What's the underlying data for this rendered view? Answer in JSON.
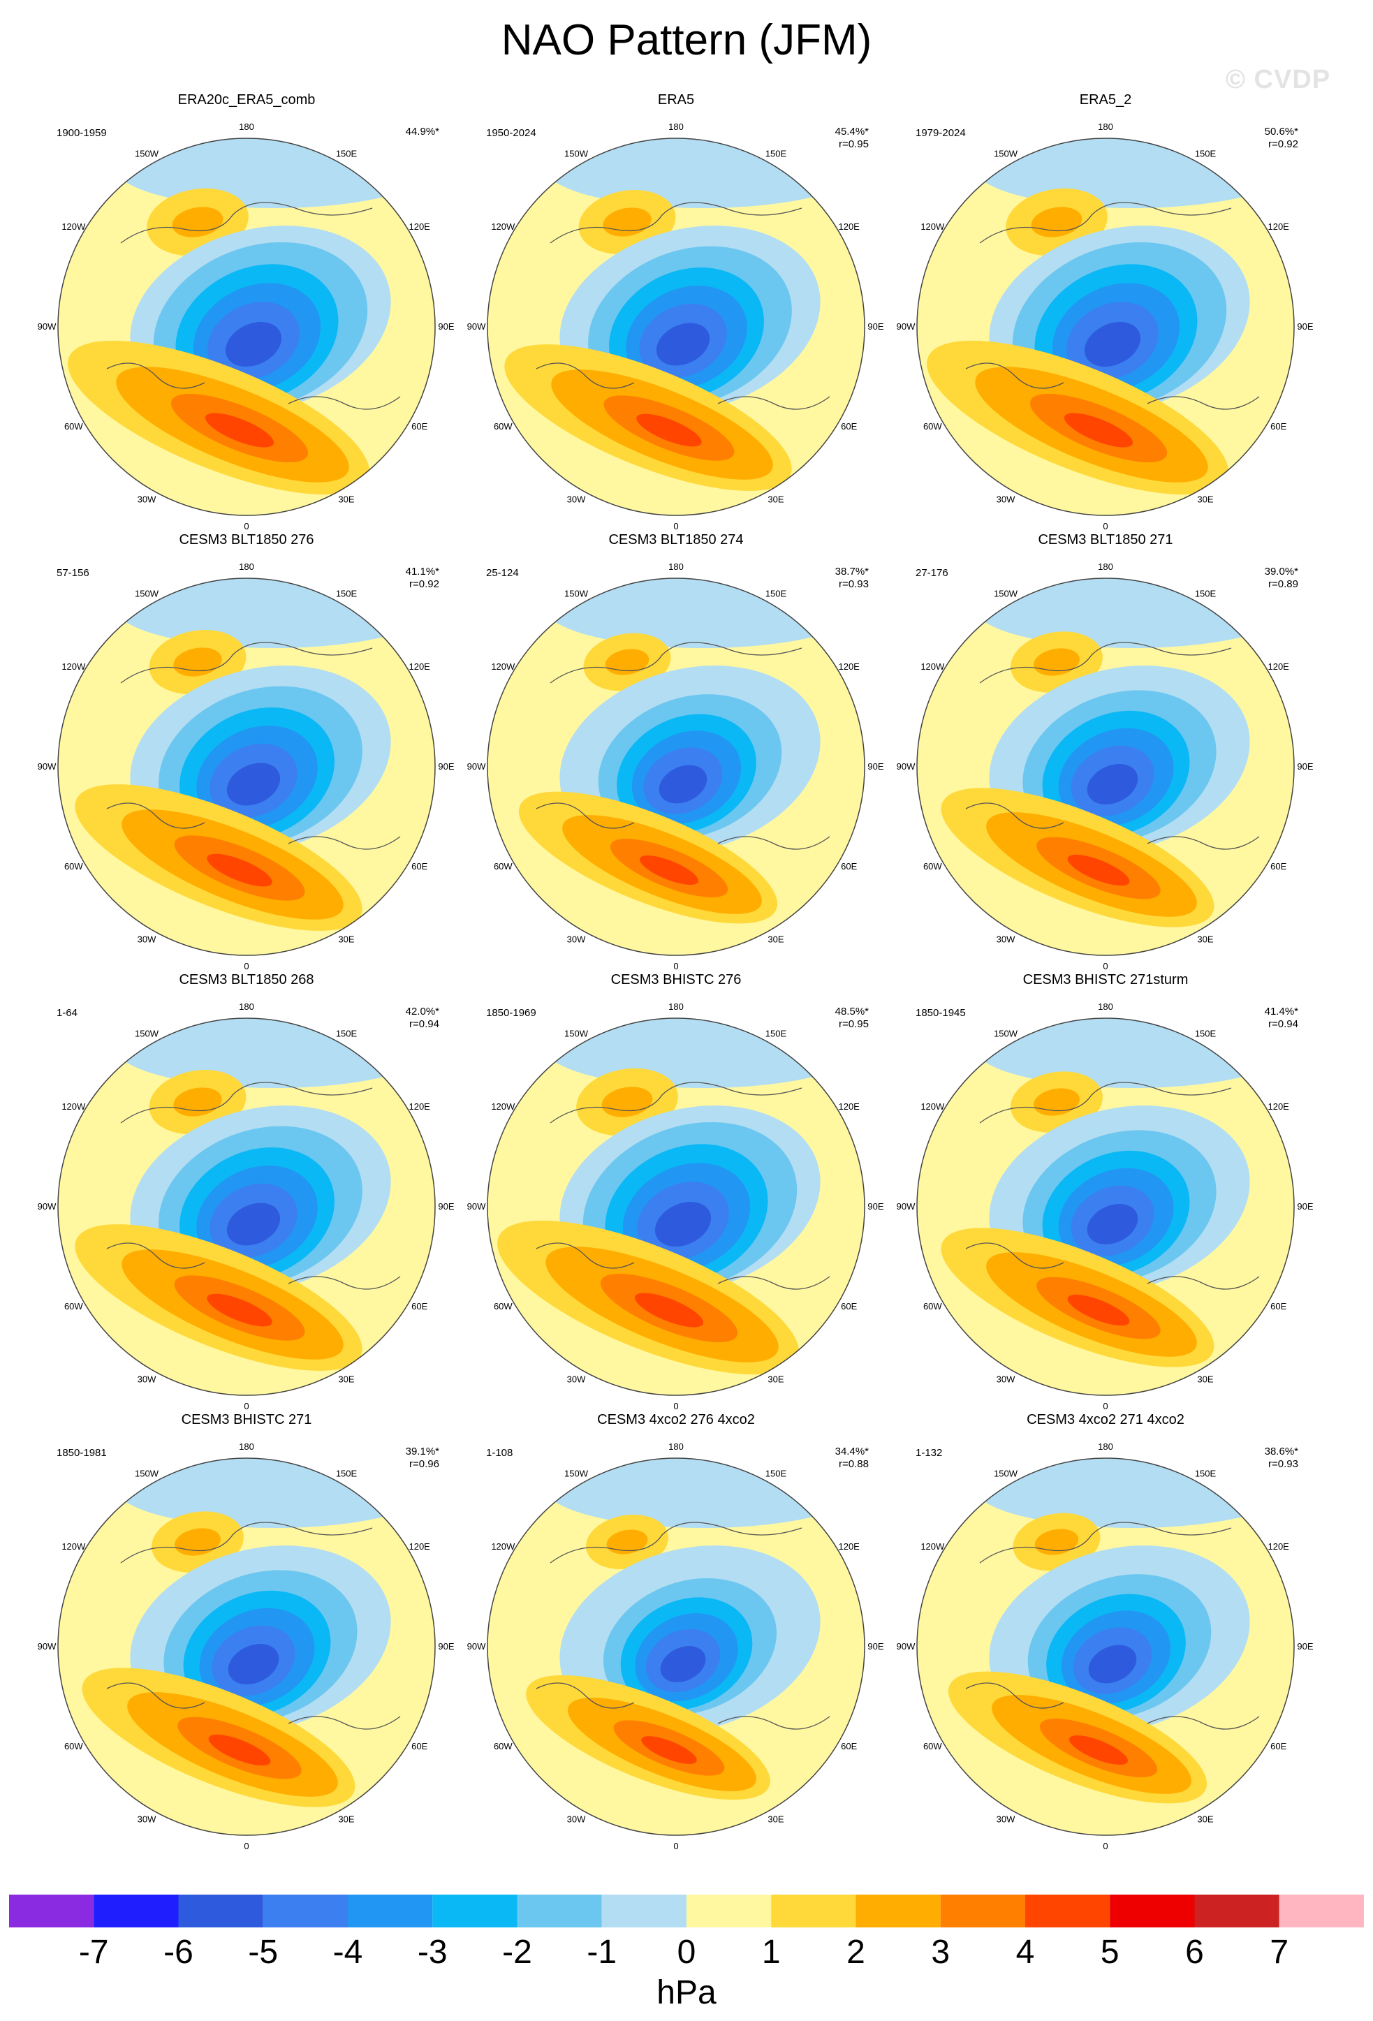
{
  "title": "NAO Pattern (JFM)",
  "watermark": "© CVDP",
  "longitude_labels": [
    "180",
    "150E",
    "120E",
    "90E",
    "60E",
    "30E",
    "0",
    "30W",
    "60W",
    "90W",
    "120W",
    "150W"
  ],
  "colors": {
    "n7": "#8a2be2",
    "n6": "#1e1eff",
    "n5": "#2e5bdd",
    "n4": "#3c7ff0",
    "n3": "#2196f3",
    "n2": "#0ab8f5",
    "n1": "#6cc7f0",
    "n0": "#b3ddf2",
    "p0": "#fff8a0",
    "p1": "#ffd83a",
    "p2": "#ffad00",
    "p3": "#ff7f00",
    "p4": "#ff4500",
    "p5": "#ee0000",
    "p6": "#cc2222",
    "p7": "#ffb6c1",
    "coast": "#555555",
    "edge": "#444444"
  },
  "panels": [
    {
      "title": "ERA20c_ERA5_comb",
      "period": "1900-1959",
      "pct": "44.9%*",
      "corr": "",
      "scale": 1.05
    },
    {
      "title": "ERA5",
      "period": "1950-2024",
      "pct": "45.4%*",
      "corr": "r=0.95",
      "scale": 1.0
    },
    {
      "title": "ERA5_2",
      "period": "1979-2024",
      "pct": "50.6%*",
      "corr": "r=0.92",
      "scale": 1.05
    },
    {
      "title": "CESM3 BLT1850 276",
      "period": "57-156",
      "pct": "41.1%*",
      "corr": "r=0.92",
      "scale": 1.0
    },
    {
      "title": "CESM3 BLT1850 274",
      "period": "25-124",
      "pct": "38.7%*",
      "corr": "r=0.93",
      "scale": 0.9
    },
    {
      "title": "CESM3 BLT1850 271",
      "period": "27-176",
      "pct": "39.0%*",
      "corr": "r=0.89",
      "scale": 0.95
    },
    {
      "title": "CESM3 BLT1850 268",
      "period": "1-64",
      "pct": "42.0%*",
      "corr": "r=0.94",
      "scale": 1.0
    },
    {
      "title": "CESM3 BHISTC 276",
      "period": "1850-1969",
      "pct": "48.5%*",
      "corr": "r=0.95",
      "scale": 1.05
    },
    {
      "title": "CESM3 BHISTC 271sturm",
      "period": "1850-1945",
      "pct": "41.4%*",
      "corr": "r=0.94",
      "scale": 0.95
    },
    {
      "title": "CESM3 BHISTC 271",
      "period": "1850-1981",
      "pct": "39.1%*",
      "corr": "r=0.96",
      "scale": 0.95
    },
    {
      "title": "CESM3 4xco2 276 4xco2",
      "period": "1-108",
      "pct": "34.4%*",
      "corr": "r=0.88",
      "scale": 0.85
    },
    {
      "title": "CESM3 4xco2 271 4xco2",
      "period": "1-132",
      "pct": "38.6%*",
      "corr": "r=0.93",
      "scale": 0.9
    }
  ],
  "colorbar": {
    "levels": [
      "-7",
      "-6",
      "-5",
      "-4",
      "-3",
      "-2",
      "-1",
      "0",
      "1",
      "2",
      "3",
      "4",
      "5",
      "6",
      "7"
    ],
    "units": "hPa"
  }
}
